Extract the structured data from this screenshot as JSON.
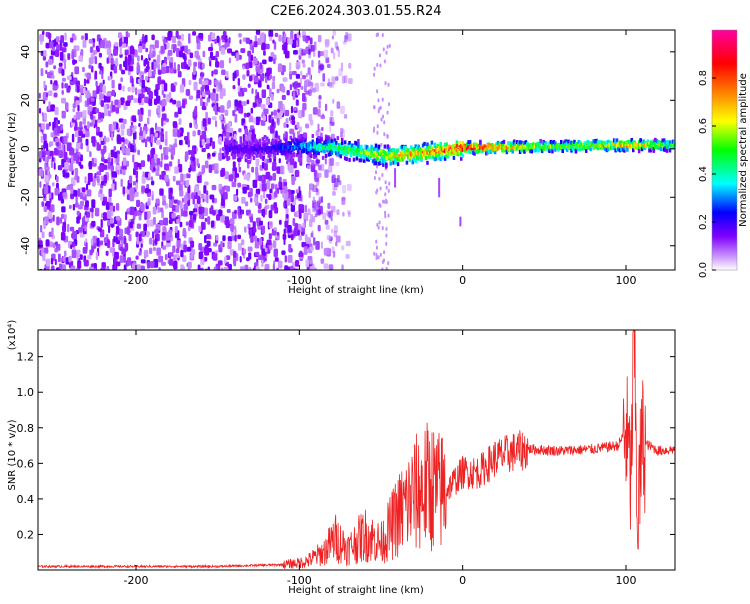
{
  "title": "C2E6.2024.303.01.55.R24",
  "colors": {
    "snr_line": "#ee2222",
    "spectrum_cold": "#7a18ff",
    "spectrum_hot": "#ff2020",
    "background": "#ffffff"
  },
  "chart_data": [
    {
      "type": "heatmap",
      "title": "C2E6.2024.303.01.55.R24",
      "xlabel": "Height of straight line (km)",
      "ylabel": "Frequency (Hz)",
      "xlim": [
        -260,
        130
      ],
      "ylim": [
        -50,
        49
      ],
      "xticks": [
        -200,
        -100,
        0,
        100
      ],
      "yticks": [
        -40,
        -20,
        0,
        20,
        40
      ],
      "grid": false,
      "ridge": {
        "x": [
          -145,
          -120,
          -100,
          -80,
          -60,
          -45,
          -30,
          -15,
          0,
          20,
          60,
          100,
          130
        ],
        "frequency": [
          0,
          0,
          1,
          0.5,
          -1.5,
          -3,
          -2,
          -1,
          0.5,
          0.5,
          1,
          1.5,
          1.5
        ],
        "amplitude": [
          0.2,
          0.2,
          0.35,
          0.5,
          0.6,
          0.7,
          0.75,
          0.8,
          1.0,
          0.85,
          0.6,
          0.8,
          0.55
        ]
      },
      "colorbar": {
        "label": "Normalized spectral amplitude",
        "range": [
          0,
          1
        ],
        "ticks": [
          "0.0",
          "0.2",
          "0.4",
          "0.6",
          "0.8"
        ],
        "tick_values": [
          0,
          0.2,
          0.4,
          0.6,
          0.8
        ],
        "stops": [
          "#ffffff",
          "#8000ff",
          "#0000ff",
          "#00ffff",
          "#00ff00",
          "#ffff00",
          "#ff8000",
          "#ff0000",
          "#ff00a0"
        ]
      }
    },
    {
      "type": "line",
      "xlabel": "Height of straight line (km)",
      "ylabel": "SNR (10 * v/v)",
      "yscale_label": "(x10⁴)",
      "xlim": [
        -260,
        130
      ],
      "ylim": [
        0,
        1.35
      ],
      "xticks": [
        -200,
        -100,
        0,
        100
      ],
      "yticks": [
        0.2,
        0.4,
        0.6,
        0.8,
        1.0,
        1.2
      ],
      "ytick_labels": [
        "0.2",
        "0.4",
        "0.6",
        "0.8",
        "1.0",
        "1.2"
      ],
      "grid": false,
      "series": [
        {
          "x": [
            -260,
            -200,
            -150,
            -110,
            -100,
            -95,
            -85,
            -78,
            -70,
            -60,
            -50,
            -40,
            -30,
            -20,
            -15,
            -10,
            0,
            10,
            20,
            30,
            40,
            60,
            80,
            95,
            100,
            103,
            105,
            107,
            110,
            120,
            130
          ],
          "values": [
            0.02,
            0.02,
            0.02,
            0.03,
            0.04,
            0.05,
            0.1,
            0.18,
            0.12,
            0.2,
            0.15,
            0.3,
            0.42,
            0.48,
            0.44,
            0.45,
            0.55,
            0.55,
            0.63,
            0.66,
            0.68,
            0.67,
            0.68,
            0.7,
            0.78,
            0.5,
            1.3,
            0.3,
            0.72,
            0.67,
            0.68
          ]
        }
      ]
    }
  ]
}
